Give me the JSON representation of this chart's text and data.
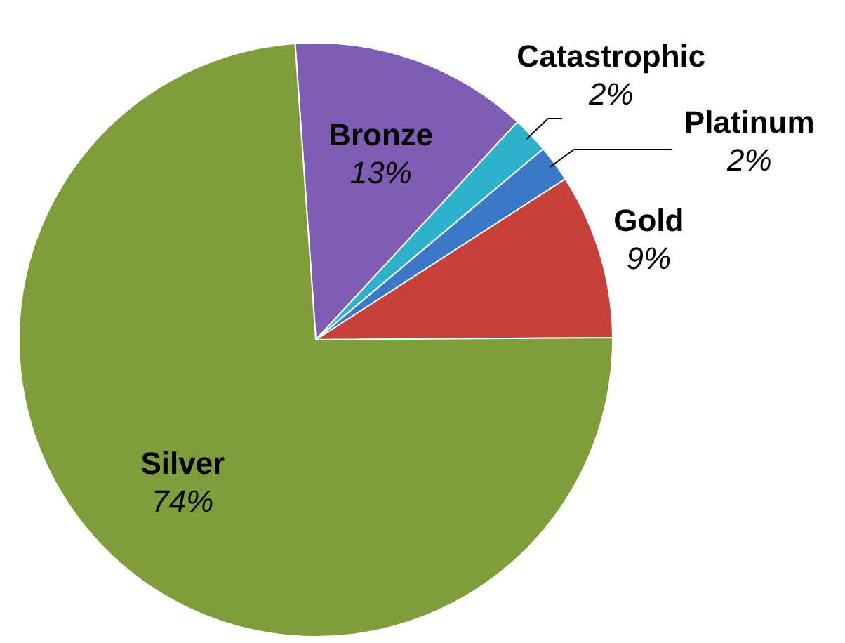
{
  "chart_data": {
    "type": "pie",
    "categories": [
      "Bronze",
      "Catastrophic",
      "Platinum",
      "Gold",
      "Silver"
    ],
    "values": [
      13,
      2,
      2,
      9,
      74
    ],
    "value_labels": [
      "13%",
      "2%",
      "2%",
      "9%",
      "74%"
    ],
    "colors": [
      "#7f5db5",
      "#2eb1cb",
      "#3b79c8",
      "#c8403b",
      "#7f9d3a"
    ],
    "legend": false
  }
}
